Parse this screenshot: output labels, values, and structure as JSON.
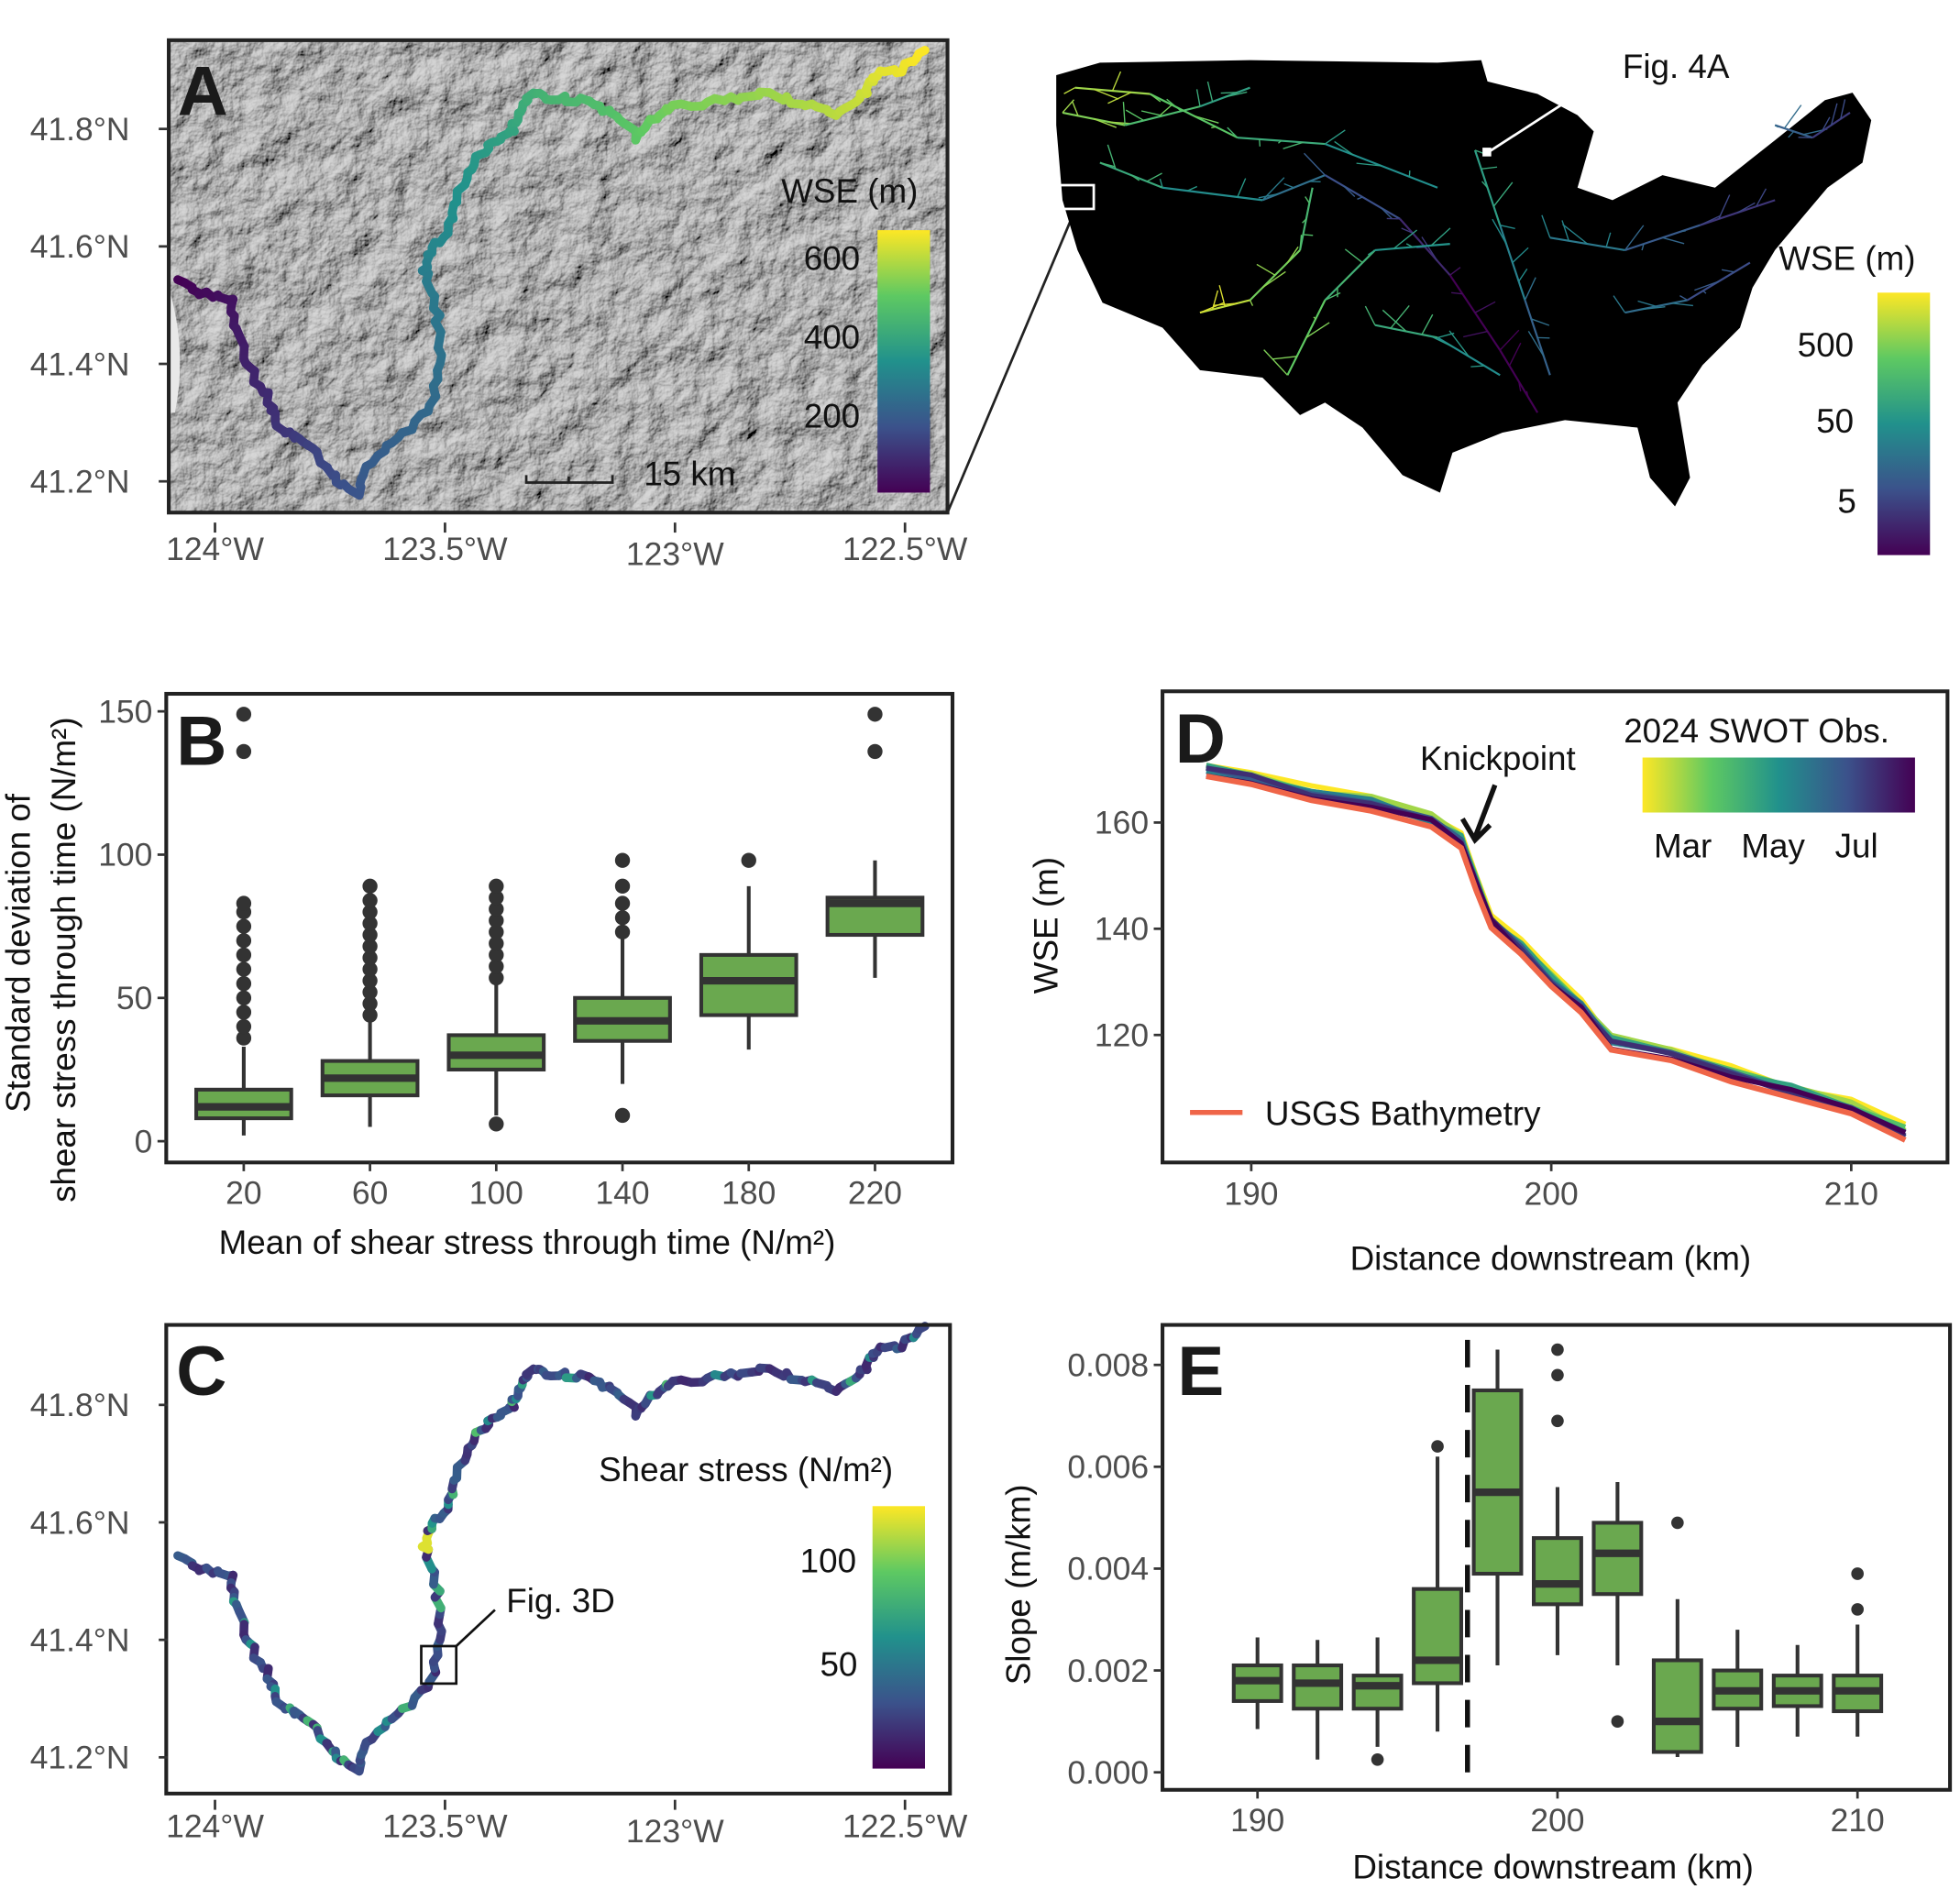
{
  "panels": {
    "A": {
      "label": "A",
      "lat_ticks": [
        "41.2°N",
        "41.4°N",
        "41.6°N",
        "41.8°N"
      ],
      "lon_ticks": [
        "124°W",
        "123.5°W",
        "123°W",
        "122.5°W"
      ],
      "colorbar_title": "WSE (m)",
      "colorbar_ticks": [
        "200",
        "400",
        "600"
      ],
      "colorbar_range": [
        0,
        650
      ],
      "scale_bar": "15 km",
      "colormap": "viridis"
    },
    "map": {
      "callout": "Fig. 4A",
      "colorbar_title": "WSE (m)",
      "colorbar_ticks": [
        "5",
        "50",
        "500"
      ],
      "colorbar_scale": "log",
      "background": "#000000"
    },
    "C": {
      "label": "C",
      "lat_ticks": [
        "41.2°N",
        "41.4°N",
        "41.6°N",
        "41.8°N"
      ],
      "lon_ticks": [
        "124°W",
        "123.5°W",
        "123°W",
        "122.5°W"
      ],
      "colorbar_title": "Shear stress (N/m²)",
      "colorbar_ticks": [
        "50",
        "100"
      ],
      "callout": "Fig. 3D"
    }
  },
  "chart_data": [
    {
      "panel": "B",
      "type": "box",
      "label": "B",
      "xlabel": "Mean of shear stress through time (N/m²)",
      "ylabel_line1": "Standard deviation of",
      "ylabel_line2": "shear stress through time (N/m²)",
      "categories": [
        "20",
        "60",
        "100",
        "140",
        "180",
        "220"
      ],
      "y_ticks": [
        "0",
        "50",
        "100",
        "150"
      ],
      "ylim": [
        -5,
        155
      ],
      "fill": "#6aa84f",
      "boxes": [
        {
          "low": 2,
          "q1": 8,
          "median": 12,
          "q3": 18,
          "high": 33,
          "outliers": [
            36,
            40,
            45,
            50,
            55,
            60,
            65,
            70,
            75,
            80,
            83,
            136,
            149
          ]
        },
        {
          "low": 5,
          "q1": 16,
          "median": 22,
          "q3": 28,
          "high": 42,
          "outliers": [
            44,
            48,
            52,
            56,
            60,
            64,
            68,
            72,
            76,
            80,
            84,
            89
          ]
        },
        {
          "low": 9,
          "q1": 25,
          "median": 30,
          "q3": 37,
          "high": 55,
          "outliers": [
            6,
            57,
            61,
            65,
            69,
            73,
            77,
            81,
            85,
            89
          ]
        },
        {
          "low": 20,
          "q1": 35,
          "median": 42,
          "q3": 50,
          "high": 72,
          "outliers": [
            9,
            73,
            78,
            83,
            89,
            98
          ]
        },
        {
          "low": 32,
          "q1": 44,
          "median": 56,
          "q3": 65,
          "high": 89,
          "outliers": [
            98
          ]
        },
        {
          "low": 57,
          "q1": 72,
          "median": 83,
          "q3": 85,
          "high": 98,
          "outliers": [
            136,
            149
          ]
        }
      ]
    },
    {
      "panel": "D",
      "type": "line",
      "label": "D",
      "xlabel": "Distance downstream (km)",
      "ylabel": "WSE (m)",
      "x_ticks": [
        "190",
        "200",
        "210"
      ],
      "y_ticks": [
        "120",
        "140",
        "160"
      ],
      "xlim": [
        187.8,
        213
      ],
      "ylim": [
        96,
        178
      ],
      "annotation": "Knickpoint",
      "legend_title": "2024 SWOT Obs.",
      "legend_ticks": [
        "Mar",
        "May",
        "Jul"
      ],
      "legend_colormap": "viridis-reversed",
      "reference_series": {
        "name": "USGS Bathymetry",
        "color": "#ef6548"
      },
      "x": [
        188.5,
        190,
        192,
        194,
        196,
        197,
        197.5,
        198,
        199,
        200,
        201,
        202,
        204,
        206,
        208,
        210,
        211.8
      ],
      "profile": [
        169.5,
        168,
        165,
        163,
        160,
        156,
        148,
        141,
        136,
        130,
        125,
        118,
        116,
        112,
        109,
        106,
        101
      ],
      "swot_series_count": 8
    },
    {
      "panel": "E",
      "type": "box",
      "label": "E",
      "xlabel": "Distance downstream (km)",
      "ylabel": "Slope (m/km)",
      "x_ticks": [
        "190",
        "200",
        "210"
      ],
      "y_ticks": [
        "0.000",
        "0.002",
        "0.004",
        "0.006",
        "0.008"
      ],
      "xlim": [
        187.8,
        213
      ],
      "ylim": [
        -0.0003,
        0.0087
      ],
      "knickpoint_line_x": 197,
      "fill": "#6aa84f",
      "boxes": [
        {
          "x": 190,
          "low": 0.00085,
          "q1": 0.0014,
          "median": 0.0018,
          "q3": 0.0021,
          "high": 0.00265,
          "outliers": []
        },
        {
          "x": 192,
          "low": 0.00025,
          "q1": 0.00125,
          "median": 0.00175,
          "q3": 0.0021,
          "high": 0.0026,
          "outliers": []
        },
        {
          "x": 194,
          "low": 0.0005,
          "q1": 0.00125,
          "median": 0.0017,
          "q3": 0.0019,
          "high": 0.00265,
          "outliers": [
            0.00025
          ]
        },
        {
          "x": 196,
          "low": 0.0008,
          "q1": 0.00175,
          "median": 0.0022,
          "q3": 0.0036,
          "high": 0.0062,
          "outliers": [
            0.0064
          ]
        },
        {
          "x": 198,
          "low": 0.0021,
          "q1": 0.0039,
          "median": 0.0055,
          "q3": 0.0075,
          "high": 0.0083,
          "outliers": []
        },
        {
          "x": 200,
          "low": 0.0023,
          "q1": 0.0033,
          "median": 0.0037,
          "q3": 0.0046,
          "high": 0.0056,
          "outliers": [
            0.0069,
            0.0078,
            0.0083
          ]
        },
        {
          "x": 202,
          "low": 0.0021,
          "q1": 0.0035,
          "median": 0.0043,
          "q3": 0.0049,
          "high": 0.0057,
          "outliers": [
            0.001
          ]
        },
        {
          "x": 204,
          "low": 0.0003,
          "q1": 0.0004,
          "median": 0.001,
          "q3": 0.0022,
          "high": 0.0034,
          "outliers": [
            0.0049
          ]
        },
        {
          "x": 206,
          "low": 0.0005,
          "q1": 0.00125,
          "median": 0.0016,
          "q3": 0.002,
          "high": 0.0028,
          "outliers": []
        },
        {
          "x": 208,
          "low": 0.0007,
          "q1": 0.0013,
          "median": 0.0016,
          "q3": 0.0019,
          "high": 0.0025,
          "outliers": []
        },
        {
          "x": 210,
          "low": 0.0007,
          "q1": 0.0012,
          "median": 0.0016,
          "q3": 0.0019,
          "high": 0.0029,
          "outliers": [
            0.0032,
            0.0039
          ]
        }
      ]
    }
  ]
}
